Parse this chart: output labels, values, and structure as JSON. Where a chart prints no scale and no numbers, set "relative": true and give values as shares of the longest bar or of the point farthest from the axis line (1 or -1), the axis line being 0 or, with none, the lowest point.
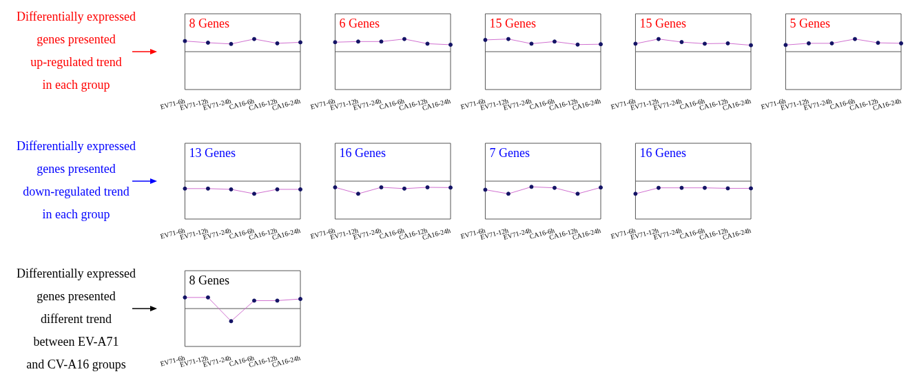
{
  "chart_data": [
    {
      "type": "other",
      "color": "#ff0000",
      "annotations": [
        "Differentially expressed",
        "genes presented",
        "up-regulated trend",
        "in each group"
      ]
    },
    {
      "type": "line",
      "title": "8 Genes",
      "relative": true,
      "marker": "circle",
      "tick_labels": "x",
      "categories": [
        "EV71-6h",
        "EV71-12h",
        "EV71-24h",
        "CA16-6h",
        "CA16-12h",
        "CA16-24h"
      ],
      "series": [
        {
          "color": "#d070d0",
          "values": [
            0.84,
            0.71,
            0.61,
            1,
            0.66,
            0.74
          ]
        }
      ]
    },
    {
      "type": "line",
      "title": "6 Genes",
      "relative": true,
      "marker": "circle",
      "tick_labels": "x",
      "categories": [
        "EV71-6h",
        "EV71-12h",
        "EV71-24h",
        "CA16-6h",
        "CA16-12h",
        "CA16-24h"
      ],
      "series": [
        {
          "color": "#d070d0",
          "values": [
            0.75,
            0.8,
            0.8,
            1,
            0.63,
            0.55
          ]
        }
      ]
    },
    {
      "type": "line",
      "title": "15 Genes",
      "relative": true,
      "marker": "circle",
      "tick_labels": "x",
      "categories": [
        "EV71-6h",
        "EV71-12h",
        "EV71-24h",
        "CA16-6h",
        "CA16-12h",
        "CA16-24h"
      ],
      "series": [
        {
          "color": "#d070d0",
          "values": [
            0.93,
            1,
            0.63,
            0.8,
            0.56,
            0.59
          ]
        }
      ]
    },
    {
      "type": "line",
      "title": "15 Genes",
      "relative": true,
      "marker": "circle",
      "tick_labels": "x",
      "categories": [
        "EV71-6h",
        "EV71-12h",
        "EV71-24h",
        "CA16-6h",
        "CA16-12h",
        "CA16-24h"
      ],
      "series": [
        {
          "color": "#d070d0",
          "values": [
            0.63,
            1,
            0.76,
            0.63,
            0.66,
            0.51
          ]
        }
      ]
    },
    {
      "type": "line",
      "title": "5 Genes",
      "relative": true,
      "marker": "circle",
      "tick_labels": "x",
      "categories": [
        "EV71-6h",
        "EV71-12h",
        "EV71-24h",
        "CA16-6h",
        "CA16-12h",
        "CA16-24h"
      ],
      "series": [
        {
          "color": "#d070d0",
          "values": [
            0.53,
            0.66,
            0.66,
            1,
            0.7,
            0.66
          ]
        }
      ]
    },
    {
      "type": "other",
      "color": "#0000ff",
      "annotations": [
        "Differentially expressed",
        "genes presented",
        "down-regulated trend",
        "in each group"
      ]
    },
    {
      "type": "line",
      "title": "13 Genes",
      "relative": true,
      "marker": "circle",
      "tick_labels": "x",
      "categories": [
        "EV71-6h",
        "EV71-12h",
        "EV71-24h",
        "CA16-6h",
        "CA16-12h",
        "CA16-24h"
      ],
      "series": [
        {
          "color": "#d070d0",
          "values": [
            -0.59,
            -0.59,
            -0.65,
            -1,
            -0.65,
            -0.65
          ]
        }
      ]
    },
    {
      "type": "line",
      "title": "16 Genes",
      "relative": true,
      "marker": "circle",
      "tick_labels": "x",
      "categories": [
        "EV71-6h",
        "EV71-12h",
        "EV71-24h",
        "CA16-6h",
        "CA16-12h",
        "CA16-24h"
      ],
      "series": [
        {
          "color": "#d070d0",
          "values": [
            -0.49,
            -1,
            -0.49,
            -0.59,
            -0.49,
            -0.51
          ]
        }
      ]
    },
    {
      "type": "line",
      "title": "7 Genes",
      "relative": true,
      "marker": "circle",
      "tick_labels": "x",
      "categories": [
        "EV71-6h",
        "EV71-12h",
        "EV71-24h",
        "CA16-6h",
        "CA16-12h",
        "CA16-24h"
      ],
      "series": [
        {
          "color": "#d070d0",
          "values": [
            -0.68,
            -1,
            -0.45,
            -0.53,
            -1,
            -0.5
          ]
        }
      ]
    },
    {
      "type": "line",
      "title": "16 Genes",
      "relative": true,
      "marker": "circle",
      "tick_labels": "x",
      "categories": [
        "EV71-6h",
        "EV71-12h",
        "EV71-24h",
        "CA16-6h",
        "CA16-12h",
        "CA16-24h"
      ],
      "series": [
        {
          "color": "#d070d0",
          "values": [
            -1,
            -0.53,
            -0.53,
            -0.53,
            -0.57,
            -0.57
          ]
        }
      ]
    },
    {
      "type": "other",
      "color": "#000000",
      "annotations": [
        "Differentially expressed",
        "genes presented",
        "different trend",
        "between EV-A71",
        "and CV-A16 groups"
      ]
    },
    {
      "type": "line",
      "title": "8 Genes",
      "relative": true,
      "marker": "circle",
      "tick_labels": "x",
      "categories": [
        "EV71-6h",
        "EV71-12h",
        "EV71-24h",
        "CA16-6h",
        "CA16-12h",
        "CA16-24h"
      ],
      "series": [
        {
          "color": "#d070d0",
          "values": [
            0.88,
            0.88,
            -1,
            0.63,
            0.63,
            0.76
          ]
        }
      ]
    }
  ]
}
